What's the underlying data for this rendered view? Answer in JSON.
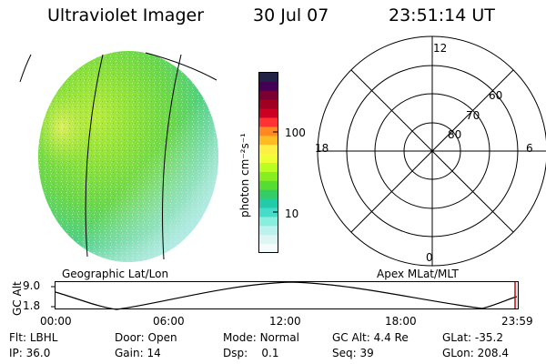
{
  "header": {
    "title": "Ultraviolet Imager",
    "date": "30 Jul 07",
    "time": "23:51:14 UT"
  },
  "colorbar": {
    "label": "photon cm⁻²s⁻¹",
    "ticks": [
      "100",
      "10"
    ],
    "colors": [
      "#222244",
      "#440055",
      "#7a0033",
      "#a00022",
      "#cc0022",
      "#ff3333",
      "#ff8822",
      "#ffbb22",
      "#ffee44",
      "#eeff33",
      "#bbff22",
      "#88ee22",
      "#55dd33",
      "#33cc66",
      "#22ccaa",
      "#44ddcc",
      "#88eedd",
      "#bbf2ee",
      "#ddf6f4",
      "#f4fbfb"
    ]
  },
  "polar_plot": {
    "mlt_labels": {
      "top": "12",
      "left": "18",
      "right": "6",
      "bottom": "0"
    },
    "lat_labels": [
      "60",
      "70",
      "80"
    ]
  },
  "panel_labels": {
    "left": "Geographic Lat/Lon",
    "right": "Apex MLat/MLT"
  },
  "altitude_strip": {
    "y_label": "GC Alt",
    "y_ticks": [
      "9.0",
      "1.8"
    ],
    "time_ticks": [
      "00:00",
      "06:00",
      "12:00",
      "18:00",
      "23:59"
    ]
  },
  "status": {
    "row1": [
      {
        "label": "Flt:",
        "value": "LBHL"
      },
      {
        "label": "Door:",
        "value": "Open"
      },
      {
        "label": "Mode:",
        "value": "Normal"
      },
      {
        "label": "GC Alt:",
        "value": "4.4 Re"
      },
      {
        "label": "GLat:",
        "value": "-35.2"
      }
    ],
    "row2": [
      {
        "label": "IP:",
        "value": "36.0"
      },
      {
        "label": "Gain:",
        "value": "14"
      },
      {
        "label": "Dsp:",
        "value": "0.1"
      },
      {
        "label": "Seq:",
        "value": "39"
      },
      {
        "label": "GLon:",
        "value": "208.4"
      }
    ]
  }
}
